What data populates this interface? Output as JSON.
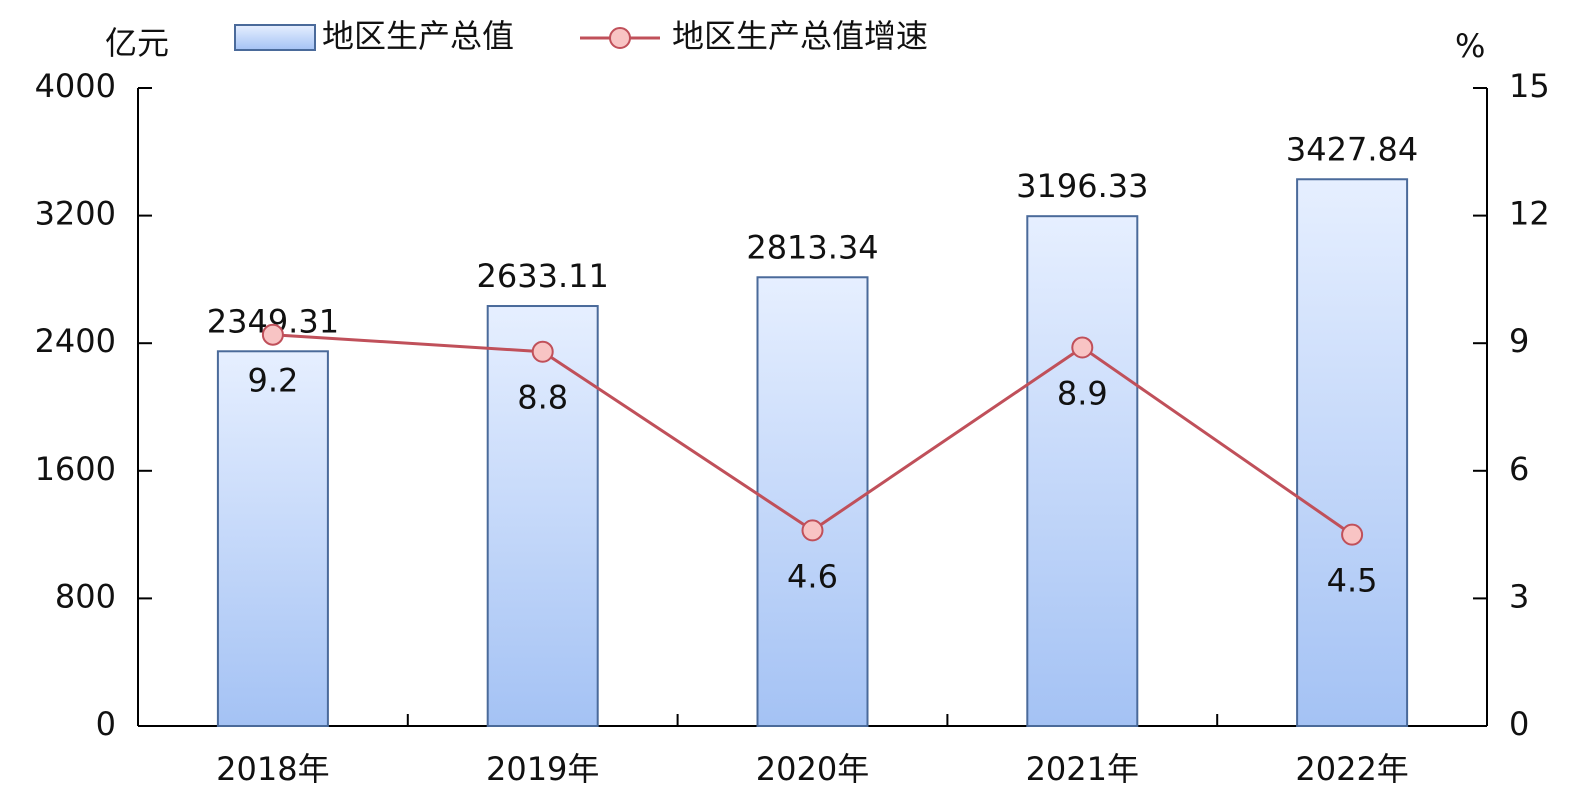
{
  "chart_data": {
    "type": "bar",
    "y_label": "亿元",
    "y2_label": "%",
    "categories": [
      "2018年",
      "2019年",
      "2020年",
      "2021年",
      "2022年"
    ],
    "series": [
      {
        "name": "地区生产总值",
        "type": "bar",
        "color": "#a4c2f4",
        "values": [
          2349.31,
          2633.11,
          2813.34,
          3196.33,
          3427.84
        ]
      },
      {
        "name": "地区生产总值增速",
        "type": "line",
        "axis": "y2",
        "color": "#c0505a",
        "values": [
          9.2,
          8.8,
          4.6,
          8.9,
          4.5
        ]
      }
    ],
    "ylim": [
      0,
      4000
    ],
    "yticks": [
      0,
      800,
      1600,
      2400,
      3200,
      4000
    ],
    "y2lim": [
      0,
      15
    ],
    "y2ticks": [
      0,
      3,
      6,
      9,
      12,
      15
    ]
  }
}
